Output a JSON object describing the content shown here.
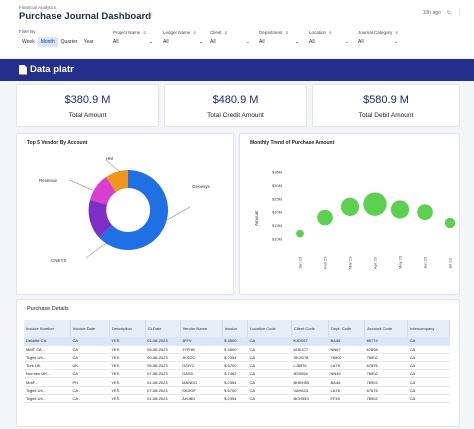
{
  "header": {
    "breadcrumb": "Financial Analytics",
    "title": "Purchase Journal Dashboard",
    "updated": "10h ago"
  },
  "filters": {
    "filter_by_label": "Filter By",
    "periods": [
      "Week",
      "Month",
      "Quarter",
      "Year"
    ],
    "active_period": "Month",
    "dropdowns": [
      {
        "label": "Project Name",
        "value": "All"
      },
      {
        "label": "Ledger Name",
        "value": "All"
      },
      {
        "label": "Client",
        "value": "All"
      },
      {
        "label": "Department",
        "value": "All"
      },
      {
        "label": "Location",
        "value": "All"
      },
      {
        "label": "Journal Category",
        "value": "All"
      }
    ]
  },
  "brand": {
    "name": "Data platr",
    "color": "#232f8a"
  },
  "kpis": [
    {
      "value": "$380.9 M",
      "label": "Total Amount"
    },
    {
      "value": "$480.9 M",
      "label": "Total Credit Amount"
    },
    {
      "value": "$580.9 M",
      "label": "Total Debit Amount"
    }
  ],
  "donut": {
    "title": "Top 5 Vendor By Account",
    "labels": [
      "HM",
      "Revenue",
      "Genesys",
      "CNEYS"
    ],
    "colors": [
      "#1f6fe5",
      "#7b2fc4",
      "#d63fcf",
      "#f0961a"
    ]
  },
  "bubble": {
    "title": "Monthly Trend of Purchase Amount",
    "ylabel": "Amount",
    "yticks": [
      "$35M",
      "$30M",
      "$25M",
      "$20M",
      "$15M",
      "$10M"
    ],
    "color": "#5bd14f"
  },
  "chart_data": {
    "type": "scatter",
    "title": "Monthly Trend of Purchase Amount",
    "ylabel": "Amount",
    "x": [
      "Jan 23",
      "Feb 23",
      "Mar 23",
      "Apr 23",
      "May 23",
      "Jun 23",
      "Jul 23"
    ],
    "y": [
      12,
      18,
      22,
      23,
      21,
      20,
      16
    ],
    "size": [
      3,
      6,
      7,
      9,
      7,
      6,
      4
    ],
    "ylim": [
      10,
      35
    ]
  },
  "table": {
    "title": "Purchase Details",
    "columns": [
      "Invoice Number",
      "Invoice Date",
      "Description",
      "GLDate",
      "Vendor Name",
      "Invoice",
      "Location Code",
      "Client Code",
      "Dept. Code",
      "Account Code",
      "Intercompany"
    ],
    "rows": [
      [
        "Deloitte CA",
        "CA",
        "YES",
        "01-08-2023",
        "JFFV",
        "$ 4500",
        "CA",
        "KJD067",
        "BA45",
        "89774",
        "CA"
      ],
      [
        "MMT CA...",
        "CA",
        "YES",
        "05-08-2023",
        "JYFHB",
        "$ 4500",
        "CA",
        "MJK477",
        "NN67",
        "67898",
        "CA"
      ],
      [
        "Tcgek UK...",
        "CA",
        "YES",
        "09-08-2023",
        "JKSDC",
        "$ 2354",
        "CA",
        "SKJG78",
        "78902",
        "78902",
        "CA"
      ],
      [
        "Turk UK",
        "UK",
        "YES",
        "05-08-2023",
        "OSIYC",
        "$ 6700",
        "CA",
        "LJ8576",
        "LA76",
        "67676",
        "CA"
      ],
      [
        "Normen UK...",
        "CA",
        "YES",
        "07-08-2023",
        "OASD",
        "$ 7462",
        "CA",
        "BS0054",
        "NN45",
        "78902",
        "CA"
      ],
      [
        "MotF...",
        "PH",
        "YES",
        "01-08-2023",
        "MANDG",
        "$ 2354",
        "CA",
        "BHBH55",
        "BA45",
        "78902",
        "CA"
      ],
      [
        "Tcgek UK...",
        "CA",
        "YES",
        "07-08-2023",
        "SKDGF",
        "$ 6700",
        "CA",
        "VAH623",
        "LA76",
        "67676",
        "CA"
      ],
      [
        "Tcgek UK...",
        "CA",
        "YES",
        "01-08-2023",
        "AHJBD",
        "$ 2354",
        "CA",
        "BCH553",
        "FF45",
        "78902",
        "CA"
      ]
    ]
  }
}
